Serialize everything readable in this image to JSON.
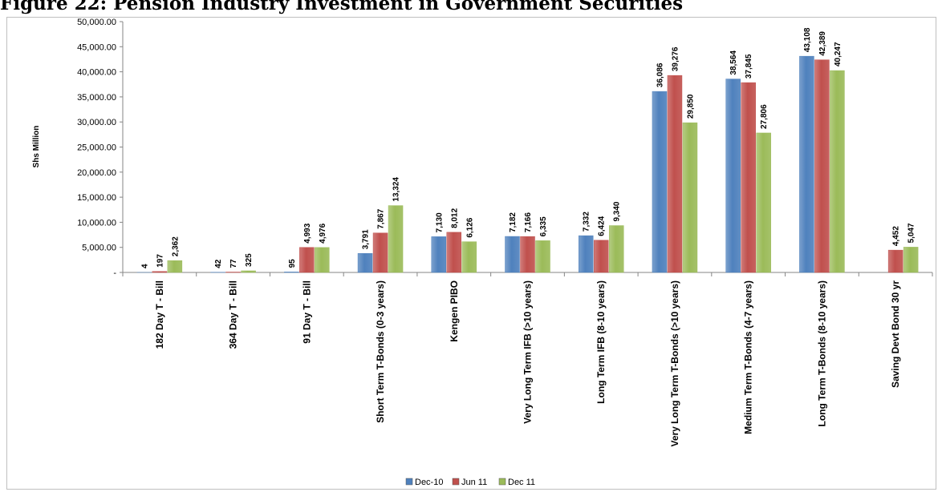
{
  "figure_title": "Figure 22: Pension Industry Investment in Government Securities",
  "chart_data": {
    "type": "bar",
    "ylabel": "Shs Million",
    "xlabel": "",
    "ylim": [
      0,
      50000
    ],
    "y_ticks": [
      "-",
      "5,000.00",
      "10,000.00",
      "15,000.00",
      "20,000.00",
      "25,000.00",
      "30,000.00",
      "35,000.00",
      "40,000.00",
      "45,000.00",
      "50,000.00"
    ],
    "grid": false,
    "legend_position": "bottom",
    "categories": [
      "182 Day T - Bill",
      "364 Day T - Bill",
      "91 Day T - Bill",
      "Short Term T-Bonds (0-3 years)",
      "Kengen PIBO",
      "Very Long Term IFB (>10 years)",
      "Long Term IFB (8-10 years)",
      "Very Long Term T-Bonds (>10 years)",
      "Medium Term T-Bonds (4-7 years)",
      "Long Term T-Bonds (8-10 years)",
      "Saving Devt Bond 30 yr"
    ],
    "series": [
      {
        "name": "Dec-10",
        "color": "#4f81bd",
        "values": [
          4,
          42,
          95,
          3791,
          7130,
          7182,
          7332,
          36086,
          38564,
          43108,
          null
        ],
        "labels": [
          "4",
          "42",
          "95",
          "3,791",
          "7,130",
          "7,182",
          "7,332",
          "36,086",
          "38,564",
          "43,108",
          null
        ]
      },
      {
        "name": "Jun 11",
        "color": "#c0504d",
        "values": [
          197,
          77,
          4993,
          7867,
          8012,
          7166,
          6424,
          39276,
          37845,
          42389,
          4452
        ],
        "labels": [
          "197",
          "77",
          "4,993",
          "7,867",
          "8,012",
          "7,166",
          "6,424",
          "39,276",
          "37,845",
          "42,389",
          "4,452"
        ]
      },
      {
        "name": "Dec 11",
        "color": "#9bbb59",
        "values": [
          2362,
          325,
          4976,
          13324,
          6126,
          6335,
          9340,
          29850,
          27806,
          40247,
          5047
        ],
        "labels": [
          "2,362",
          "325",
          "4,976",
          "13,324",
          "6,126",
          "6,335",
          "9,340",
          "29,850",
          "27,806",
          "40,247",
          "5,047"
        ]
      }
    ]
  }
}
